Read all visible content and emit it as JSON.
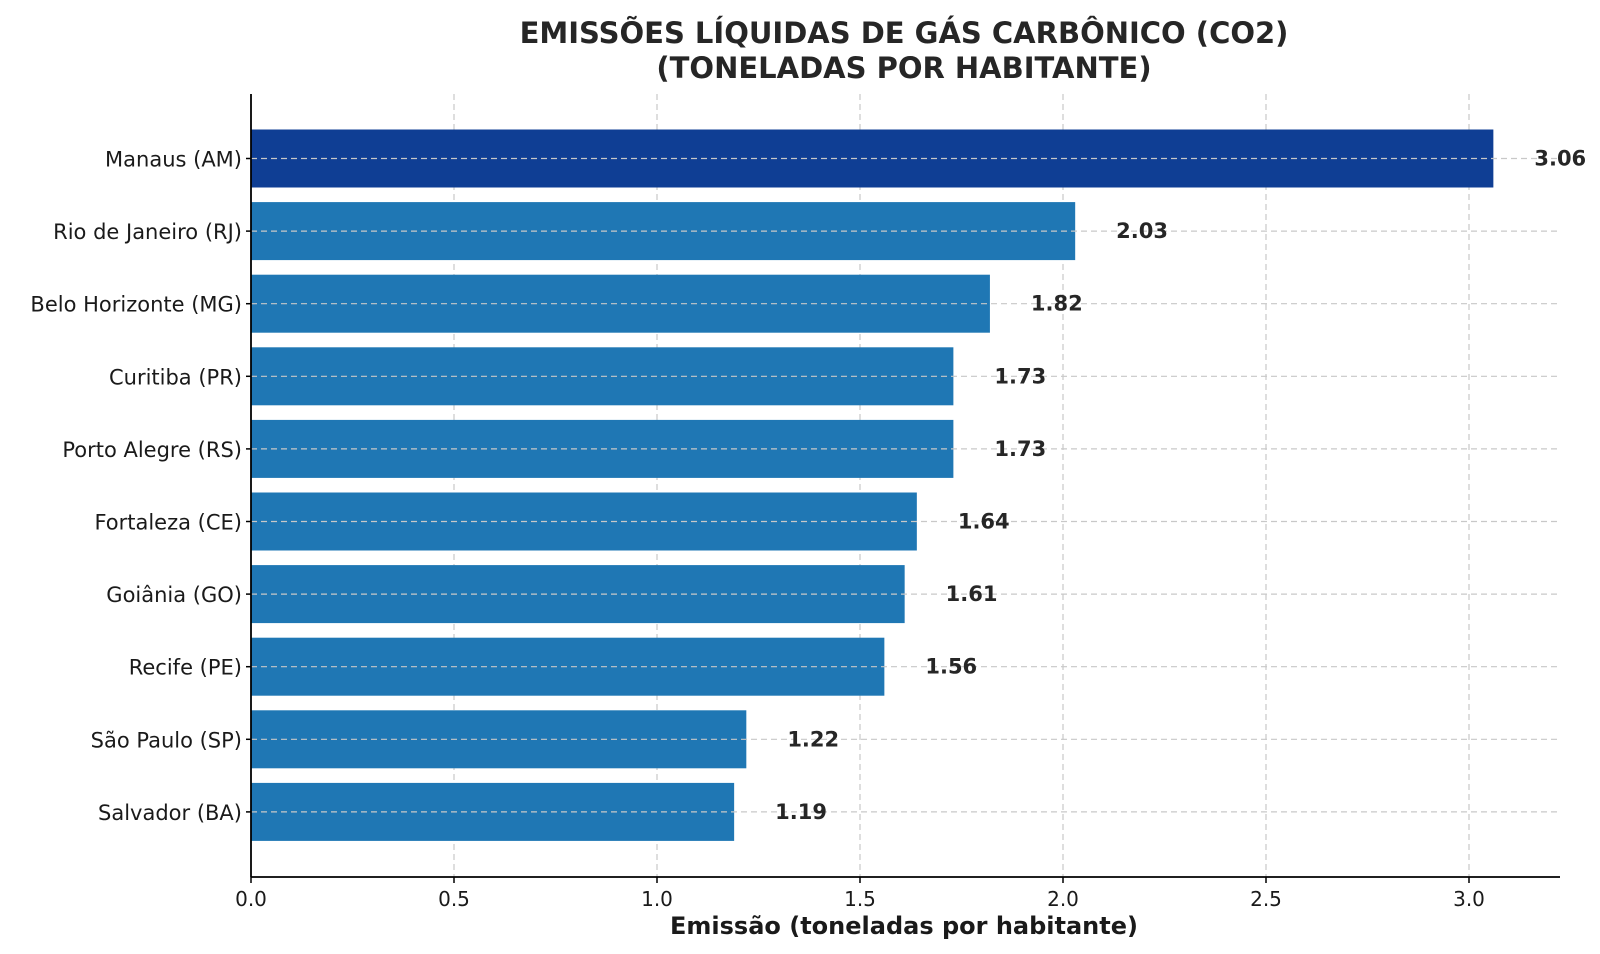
{
  "chart_data": {
    "type": "bar",
    "orientation": "horizontal",
    "title_lines": [
      "EMISSÕES LÍQUIDAS DE GÁS CARBÔNICO (CO2)",
      "(TONELADAS POR HABITANTE)"
    ],
    "xlabel": "Emissão (toneladas por habitante)",
    "ylabel": "",
    "xlim": [
      0,
      3.22
    ],
    "xticks": [
      0.0,
      0.5,
      1.0,
      1.5,
      2.0,
      2.5,
      3.0
    ],
    "xtick_labels": [
      "0.0",
      "0.5",
      "1.0",
      "1.5",
      "2.0",
      "2.5",
      "3.0"
    ],
    "grid": true,
    "categories": [
      "Manaus (AM)",
      "Rio de Janeiro (RJ)",
      "Belo Horizonte (MG)",
      "Curitiba (PR)",
      "Porto Alegre (RS)",
      "Fortaleza (CE)",
      "Goiânia (GO)",
      "Recife (PE)",
      "São Paulo (SP)",
      "Salvador (BA)"
    ],
    "values": [
      3.06,
      2.03,
      1.82,
      1.73,
      1.73,
      1.64,
      1.61,
      1.56,
      1.22,
      1.19
    ],
    "value_labels": [
      "3.06",
      "2.03",
      "1.82",
      "1.73",
      "1.73",
      "1.64",
      "1.61",
      "1.56",
      "1.22",
      "1.19"
    ],
    "colors": {
      "highlight": "#0f3e94",
      "default": "#1f77b4",
      "grid": "#c8c8c8",
      "axis": "#000000"
    },
    "highlight_index": 0
  }
}
